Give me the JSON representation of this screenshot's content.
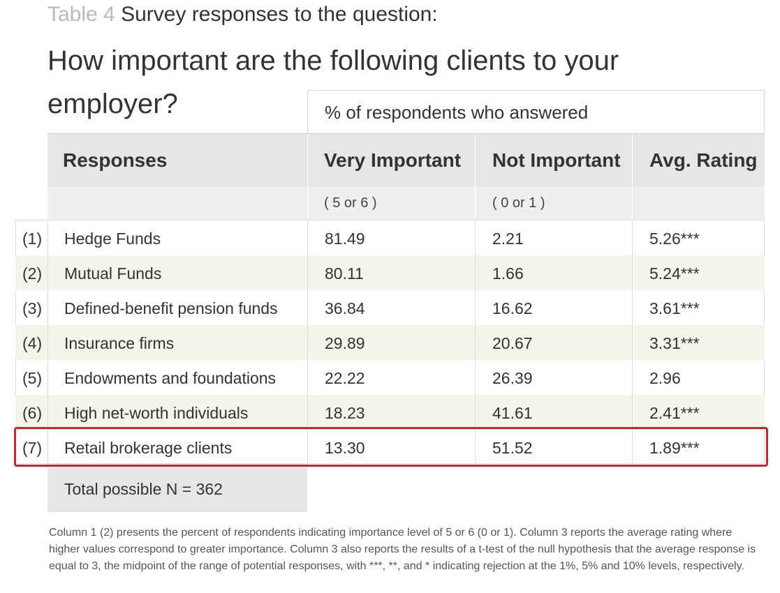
{
  "caption": {
    "table_number": "Table 4",
    "question_intro": "Survey responses to the question:"
  },
  "title": "How important are the following clients to your employer?",
  "table": {
    "group_header": "% of respondents who answered",
    "headers": {
      "responses": "Responses",
      "very_important": "Very Important",
      "not_important": "Not Important",
      "avg_rating": "Avg. Rating"
    },
    "subheaders": {
      "very_important": "( 5 or 6 )",
      "not_important": "( 0 or 1 )"
    },
    "rows": [
      {
        "num": "(1)",
        "label": "Hedge Funds",
        "very": "81.49",
        "not": "2.21",
        "avg": "5.26***"
      },
      {
        "num": "(2)",
        "label": "Mutual Funds",
        "very": "80.11",
        "not": "1.66",
        "avg": "5.24***"
      },
      {
        "num": "(3)",
        "label": "Defined-benefit pension funds",
        "very": "36.84",
        "not": "16.62",
        "avg": "3.61***"
      },
      {
        "num": "(4)",
        "label": "Insurance firms",
        "very": "29.89",
        "not": "20.67",
        "avg": "3.31***"
      },
      {
        "num": "(5)",
        "label": "Endowments and foundations",
        "very": "22.22",
        "not": "26.39",
        "avg": "2.96"
      },
      {
        "num": "(6)",
        "label": "High net-worth individuals",
        "very": "18.23",
        "not": "41.61",
        "avg": "2.41***"
      },
      {
        "num": "(7)",
        "label": "Retail brokerage clients",
        "very": "13.30",
        "not": "51.52",
        "avg": "1.89***"
      }
    ],
    "total": "Total possible N = 362",
    "highlight_color": "#c8262c",
    "alt_row_color": "#f3f4ea"
  },
  "note": "Column 1 (2) presents the percent of respondents indicating importance level of 5 or 6 (0 or 1). Column 3 reports the average rating where higher values correspond to greater importance. Column 3 also reports the results of a t-test of the null hypothesis that the average response is equal to 3, the midpoint of the range of potential responses, with ***, **, and * indicating rejection at the 1%, 5% and 10% levels, respectively."
}
